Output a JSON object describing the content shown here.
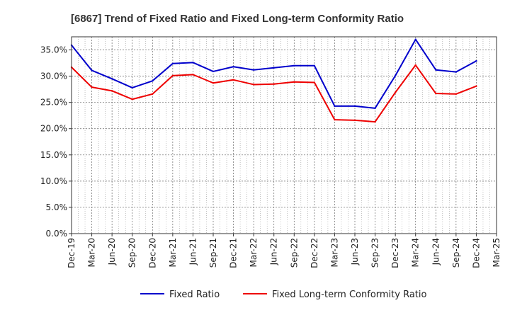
{
  "chart_data": {
    "type": "line",
    "title": "[6867]  Trend of Fixed Ratio and Fixed Long-term Conformity Ratio",
    "xlabel": "",
    "ylabel": "",
    "x": [
      "Dec-19",
      "Mar-20",
      "Jun-20",
      "Sep-20",
      "Dec-20",
      "Mar-21",
      "Jun-21",
      "Sep-21",
      "Dec-21",
      "Mar-22",
      "Jun-22",
      "Sep-22",
      "Dec-22",
      "Mar-23",
      "Jun-23",
      "Sep-23",
      "Dec-23",
      "Mar-24",
      "Jun-24",
      "Sep-24",
      "Dec-24",
      "Mar-25"
    ],
    "ylim": [
      0,
      37.5
    ],
    "y_ticks": [
      0,
      5,
      10,
      15,
      20,
      25,
      30,
      35
    ],
    "y_tick_labels": [
      "0.0%",
      "5.0%",
      "10.0%",
      "15.0%",
      "20.0%",
      "25.0%",
      "30.0%",
      "35.0%"
    ],
    "grid": true,
    "legend_position": "bottom",
    "series": [
      {
        "name": "Fixed Ratio",
        "color": "#0000cc",
        "values": [
          35.9,
          31.1,
          29.5,
          27.8,
          29.1,
          32.4,
          32.6,
          30.9,
          31.8,
          31.2,
          31.6,
          32.0,
          32.0,
          24.3,
          24.3,
          23.9,
          30.1,
          37.0,
          31.2,
          30.8,
          32.9,
          null
        ]
      },
      {
        "name": "Fixed Long-term Conformity Ratio",
        "color": "#ee0000",
        "values": [
          31.7,
          27.9,
          27.2,
          25.6,
          26.6,
          30.1,
          30.3,
          28.7,
          29.3,
          28.4,
          28.5,
          28.9,
          28.8,
          21.7,
          21.6,
          21.3,
          26.9,
          32.1,
          26.7,
          26.6,
          28.1,
          null
        ]
      }
    ]
  }
}
